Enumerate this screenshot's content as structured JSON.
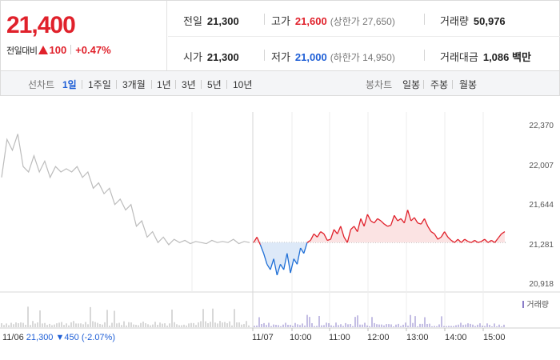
{
  "header": {
    "price": "21,400",
    "change_label": "전일대비",
    "change_amount": "100",
    "change_rate": "+0.47%",
    "prev_close_label": "전일",
    "prev_close": "21,300",
    "high_label": "고가",
    "high": "21,600",
    "upper_limit": "(상한가 27,650)",
    "volume_label": "거래량",
    "volume": "50,976",
    "open_label": "시가",
    "open": "21,300",
    "low_label": "저가",
    "low": "21,000",
    "lower_limit": "(하한가 14,950)",
    "amount_label": "거래대금",
    "amount": "1,086 백만"
  },
  "tabs": {
    "line_label": "선차트",
    "periods": [
      "1일",
      "1주일",
      "3개월",
      "1년",
      "3년",
      "5년",
      "10년"
    ],
    "active_period": "1일",
    "candle_label": "봉차트",
    "candles": [
      "일봉",
      "주봉",
      "월봉"
    ]
  },
  "chart_data": {
    "type": "line",
    "y_ticks": [
      "22,370",
      "22,007",
      "21,644",
      "21,281",
      "20,918"
    ],
    "ylim": [
      20918,
      22370
    ],
    "x_ticks": [
      "11/06",
      "11/07",
      "10:00",
      "11:00",
      "12:00",
      "13:00",
      "14:00",
      "15:00"
    ],
    "baseline": 21300,
    "series": [
      {
        "values": [
          21900,
          22250,
          22150,
          22300,
          22000,
          21950,
          22100,
          21950,
          22050,
          21900,
          22000,
          21950,
          21980,
          21950,
          22000,
          21900,
          21950,
          21800,
          21850,
          21750,
          21800,
          21650,
          21700,
          21600,
          21650,
          21450,
          21500,
          21350,
          21400,
          21300,
          21350,
          21280,
          21330,
          21300,
          21320,
          21290,
          21310,
          21300,
          21290,
          21320,
          21300,
          21310,
          21300,
          21330,
          21290,
          21310,
          21300
        ]
      },
      {
        "values": [
          21300,
          21350,
          21280,
          21200,
          21100,
          21050,
          21150,
          21000,
          21100,
          21050,
          21200,
          21020,
          21150,
          21100,
          21250,
          21200,
          21300,
          21320,
          21380,
          21350,
          21400,
          21380,
          21320,
          21330,
          21420,
          21380,
          21450,
          21350,
          21300,
          21420,
          21450,
          21400,
          21520,
          21450,
          21560,
          21500,
          21480,
          21520,
          21500,
          21470,
          21450,
          21460,
          21550,
          21500,
          21520,
          21480,
          21600,
          21500,
          21530,
          21480,
          21470,
          21520,
          21450,
          21400,
          21380,
          21330,
          21350,
          21400,
          21350,
          21320,
          21300,
          21330,
          21300,
          21330,
          21310,
          21300,
          21320,
          21300,
          21310,
          21330,
          21300,
          21320,
          21300,
          21340,
          21380,
          21400
        ]
      }
    ],
    "volume_legend": "거래량",
    "prev_close_note": {
      "date": "11/06",
      "price": "21,300",
      "change": "450",
      "rate": "(-2.07%)"
    },
    "colors": {
      "prev_day": "#bcbcbc",
      "up": "#e0212b",
      "down": "#1f6fd6",
      "up_fill": "#fbe3e3",
      "down_fill": "#dde9f8",
      "volume": "#b0b0b0",
      "volume_today": "#8a7dc8"
    }
  }
}
